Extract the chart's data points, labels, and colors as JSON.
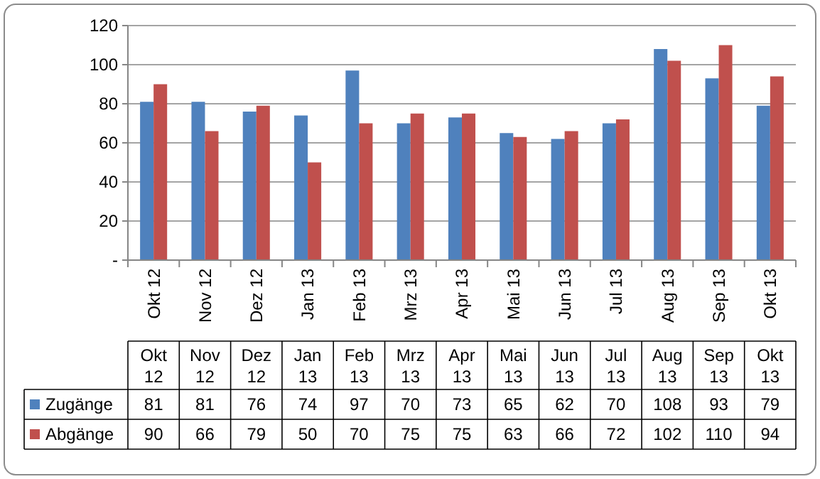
{
  "chart_data": {
    "type": "bar",
    "categories": [
      "Okt 12",
      "Nov 12",
      "Dez 12",
      "Jan 13",
      "Feb 13",
      "Mrz 13",
      "Apr 13",
      "Mai 13",
      "Jun 13",
      "Jul 13",
      "Aug 13",
      "Sep 13",
      "Okt 13"
    ],
    "series": [
      {
        "name": "Zugänge",
        "color": "#4f81bd",
        "values": [
          81,
          81,
          76,
          74,
          97,
          70,
          73,
          65,
          62,
          70,
          108,
          93,
          79
        ]
      },
      {
        "name": "Abgänge",
        "color": "#c0504d",
        "values": [
          90,
          66,
          79,
          50,
          70,
          75,
          75,
          63,
          66,
          72,
          102,
          110,
          94
        ]
      }
    ],
    "ylim": [
      0,
      120
    ],
    "yticks": [
      {
        "value": 0,
        "label": "-"
      },
      20,
      40,
      60,
      80,
      100,
      120
    ],
    "grid": "y",
    "legend": "bottom",
    "data_labels": true
  }
}
